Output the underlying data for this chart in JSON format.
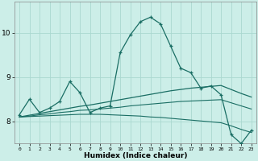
{
  "xlabel": "Humidex (Indice chaleur)",
  "bg_color": "#cceee8",
  "line_color": "#1a6e64",
  "grid_color": "#aad8d0",
  "x_values": [
    0,
    1,
    2,
    3,
    4,
    5,
    6,
    7,
    8,
    9,
    10,
    11,
    12,
    13,
    14,
    15,
    16,
    17,
    18,
    19,
    20,
    21,
    22,
    23
  ],
  "main_line": [
    8.15,
    8.5,
    8.2,
    8.3,
    8.45,
    8.9,
    8.65,
    8.2,
    8.3,
    8.35,
    9.55,
    9.95,
    10.25,
    10.35,
    10.2,
    9.7,
    9.2,
    9.1,
    8.75,
    8.8,
    8.6,
    7.7,
    7.5,
    7.8
  ],
  "trend_up": [
    8.1,
    8.14,
    8.18,
    8.22,
    8.26,
    8.3,
    8.34,
    8.37,
    8.41,
    8.45,
    8.49,
    8.53,
    8.57,
    8.61,
    8.65,
    8.69,
    8.72,
    8.75,
    8.77,
    8.79,
    8.81,
    8.72,
    8.63,
    8.55
  ],
  "trend_flat": [
    8.1,
    8.11,
    8.12,
    8.13,
    8.14,
    8.15,
    8.16,
    8.16,
    8.16,
    8.15,
    8.14,
    8.13,
    8.12,
    8.1,
    8.09,
    8.07,
    8.05,
    8.03,
    8.01,
    7.99,
    7.97,
    7.9,
    7.82,
    7.75
  ],
  "trend_mid": [
    8.1,
    8.12,
    8.15,
    8.17,
    8.2,
    8.22,
    8.25,
    8.26,
    8.28,
    8.3,
    8.32,
    8.35,
    8.37,
    8.39,
    8.41,
    8.43,
    8.45,
    8.46,
    8.47,
    8.48,
    8.49,
    8.42,
    8.35,
    8.28
  ],
  "ylim": [
    7.5,
    10.7
  ],
  "yticks": [
    8,
    9,
    10
  ],
  "xticks": [
    0,
    1,
    2,
    3,
    4,
    5,
    6,
    7,
    8,
    9,
    10,
    11,
    12,
    13,
    14,
    15,
    16,
    17,
    18,
    19,
    20,
    21,
    22,
    23
  ]
}
